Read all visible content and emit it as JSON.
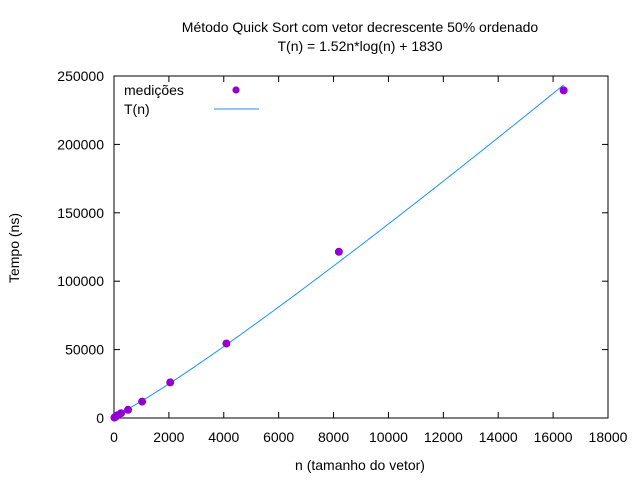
{
  "chart_data": {
    "type": "scatter",
    "title": "Método Quick Sort com vetor decrescente 50% ordenado",
    "subtitle": "T(n) = 1.52n*log(n) + 1830",
    "xlabel": "n (tamanho do vetor)",
    "ylabel": "Tempo (ns)",
    "xlim": [
      0,
      18000
    ],
    "ylim": [
      0,
      250000
    ],
    "x_ticks": [
      0,
      2000,
      4000,
      6000,
      8000,
      10000,
      12000,
      14000,
      16000,
      18000
    ],
    "y_ticks": [
      0,
      50000,
      100000,
      150000,
      200000,
      250000
    ],
    "grid": false,
    "legend_position": "top-left",
    "colors": {
      "points": "#9400d3",
      "curve": "#1e90ff"
    },
    "series": [
      {
        "name": "medições",
        "kind": "points",
        "x": [
          16,
          32,
          64,
          128,
          256,
          512,
          1024,
          2048,
          4096,
          8192,
          16384
        ],
        "y": [
          300,
          600,
          1000,
          2000,
          3500,
          6000,
          12000,
          26000,
          54500,
          121500,
          239500
        ]
      },
      {
        "name": "T(n)",
        "kind": "function",
        "formula": "1.52*n*log(n) + 1830"
      }
    ]
  }
}
